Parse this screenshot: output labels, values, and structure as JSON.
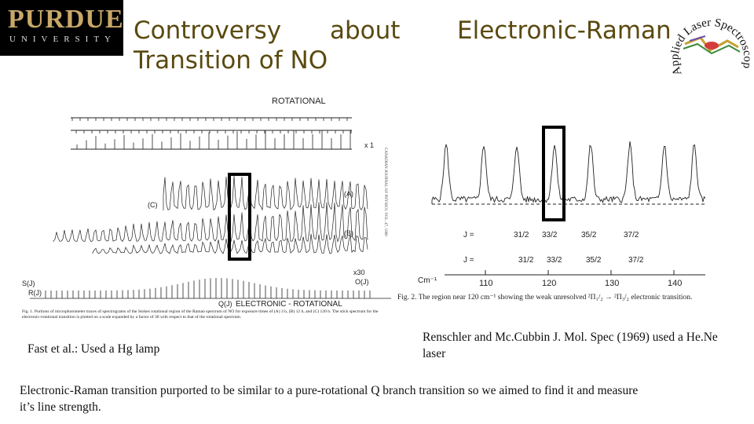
{
  "logo": {
    "line1": "PURDUE",
    "line2": "UNIVERSITY"
  },
  "title": {
    "part1": "Controversy",
    "part2": "about",
    "part3": "Electronic-Raman",
    "part4": "Transition of NO"
  },
  "lab_logo": {
    "text": "Applied Laser Spectroscopy Laboratory"
  },
  "fig1": {
    "header": "ROTATIONAL",
    "bottom_label": "ELECTRONIC - ROTATIONAL",
    "trace_labels": [
      "(C)",
      "(A)",
      "(B)",
      "x 1",
      "x30"
    ],
    "branch_labels": [
      "S(J)",
      "R(J)",
      "Q(J)",
      "O(J)"
    ],
    "side_text": "CANADIAN JOURNAL OF PHYSICS. VOL. 47, 1969",
    "caption": "Fig. 1. Portions of microphotometer traces of spectrograms of the Stokes rotational region of the Raman spectrum of NO for exposure times of (A) 3 h, (B) 12 h, and (C) 120 h. The stick spectrum for the electronic-rotational transition is plotted on a scale expanded by a factor of 30 with respect to that of the rotational spectrum."
  },
  "fig2": {
    "j_upper": [
      "31/2",
      "33/2",
      "35/2",
      "37/2"
    ],
    "j_lower": [
      "31/2",
      "33/2",
      "35/2",
      "37/2"
    ],
    "axis_ticks": [
      "110",
      "120",
      "130",
      "140"
    ],
    "axis_unit": "Cm⁻¹",
    "caption": "Fig. 2. The region near 120 cm⁻¹ showing the weak unresolved ²Π₁/₂ → ²Π₃/₂ electronic transition."
  },
  "captions": {
    "left": "Fast et al.: Used a Hg lamp",
    "right": "Renschler and Mc.Cubbin J. Mol. Spec (1969) used a He.Ne laser",
    "bottom": "Electronic-Raman transition purported to be similar to a pure-rotational Q branch transition so we aimed to find it and measure it’s line strength."
  }
}
